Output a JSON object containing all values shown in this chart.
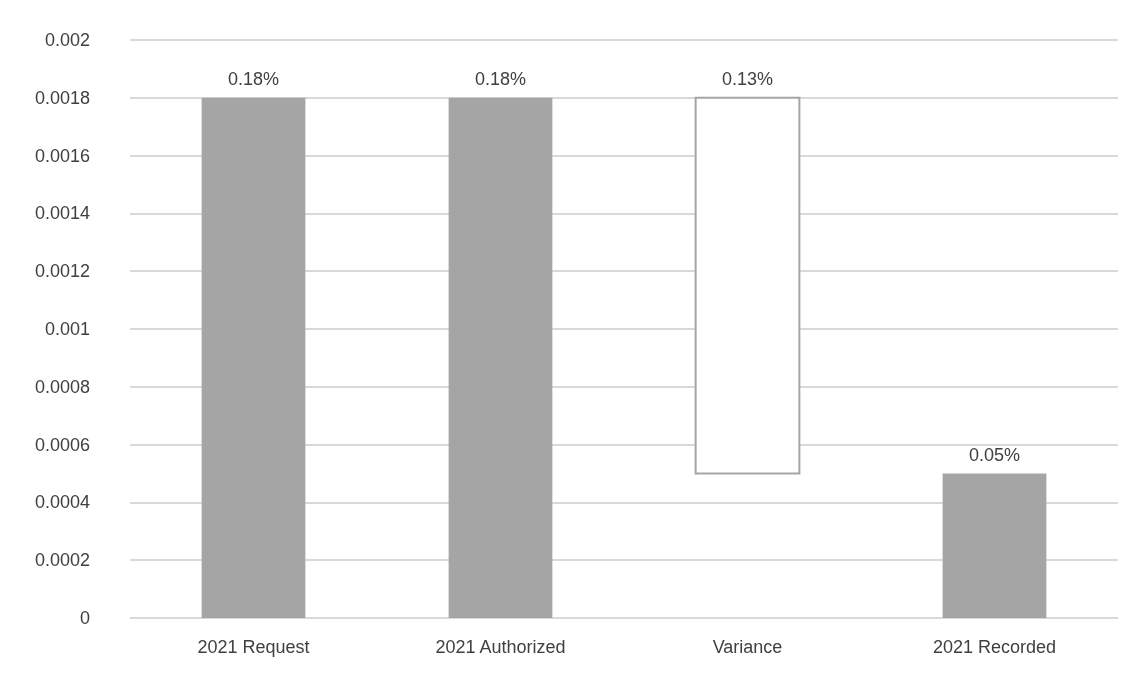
{
  "chart_data": {
    "type": "bar",
    "categories": [
      "2021 Request",
      "2021 Authorized",
      "Variance",
      "2021 Recorded"
    ],
    "values": [
      0.0018,
      0.0018,
      0.0013,
      0.0005
    ],
    "base": [
      0,
      0,
      0.0005,
      0
    ],
    "color": "#a5a5a5",
    "colors": [
      "#a5a5a5",
      "#a5a5a5",
      "#ffffff",
      "#a5a5a5"
    ],
    "value_labels": [
      "0.18%",
      "0.18%",
      "0.13%",
      "0.05%"
    ],
    "ylim": [
      0,
      0.002
    ],
    "yticks": [
      0,
      0.0002,
      0.0004,
      0.0006,
      0.0008,
      0.001,
      0.0012,
      0.0014,
      0.0016,
      0.0018,
      0.002
    ],
    "grid": "y"
  }
}
